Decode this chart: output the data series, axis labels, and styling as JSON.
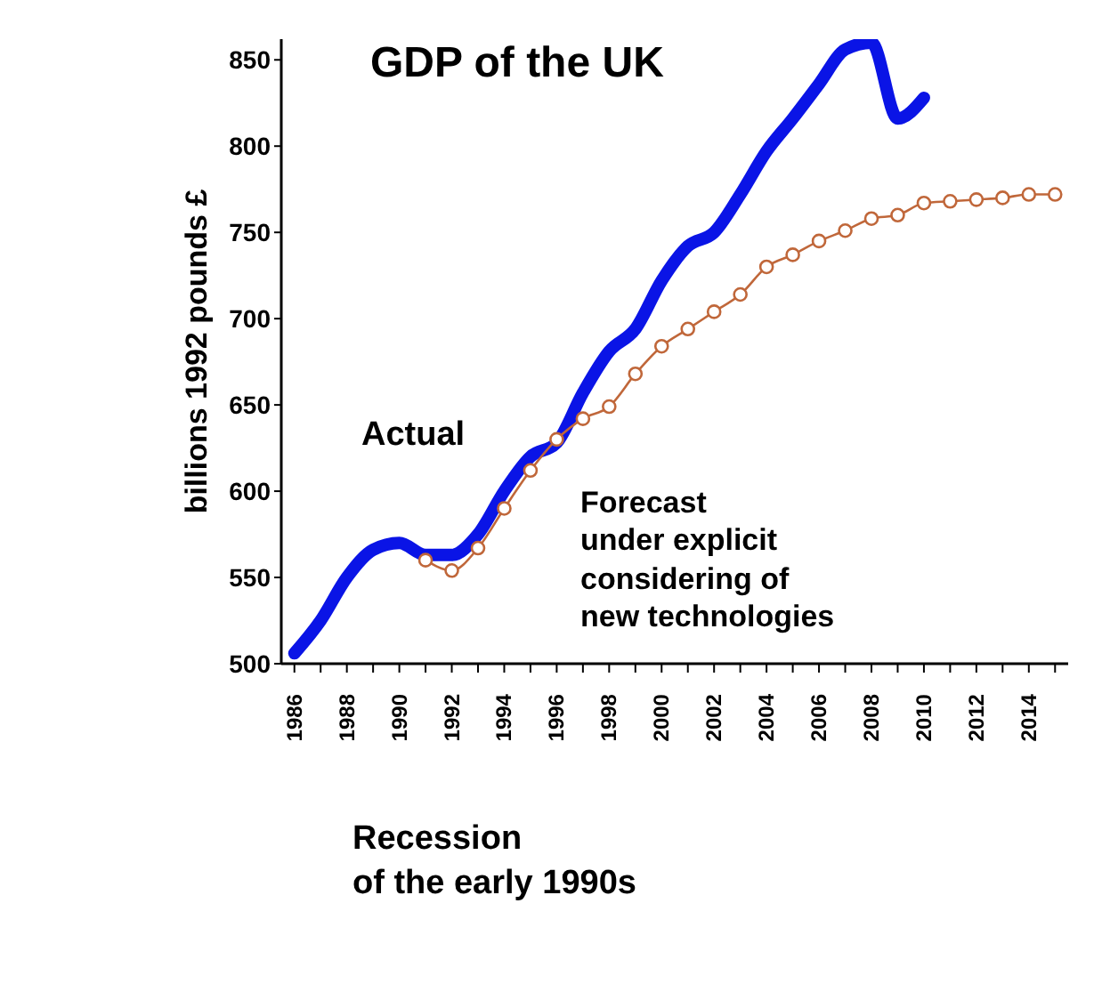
{
  "chart_data": {
    "type": "line",
    "title": "GDP of the UK",
    "ylabel": "billions 1992 pounds £",
    "xlim": [
      1985.5,
      2015.5
    ],
    "xticks": [
      1986,
      {
        "value": 1987,
        "label": null
      },
      1988,
      {
        "value": 1989,
        "label": null
      },
      1990,
      {
        "value": 1991,
        "label": null
      },
      1992,
      {
        "value": 1993,
        "label": null
      },
      1994,
      {
        "value": 1995,
        "label": null
      },
      1996,
      {
        "value": 1997,
        "label": null
      },
      1998,
      {
        "value": 1999,
        "label": null
      },
      2000,
      {
        "value": 2001,
        "label": null
      },
      2002,
      {
        "value": 2003,
        "label": null
      },
      2004,
      {
        "value": 2005,
        "label": null
      },
      2006,
      {
        "value": 2007,
        "label": null
      },
      2008,
      {
        "value": 2009,
        "label": null
      },
      2010,
      {
        "value": 2011,
        "label": null
      },
      2012,
      {
        "value": 2013,
        "label": null
      },
      2014,
      {
        "value": 2015,
        "label": null
      }
    ],
    "ylim": [
      500,
      862
    ],
    "yticks": [
      500,
      550,
      600,
      650,
      700,
      750,
      800,
      850
    ],
    "grid": false,
    "series": [
      {
        "name": "Actual",
        "color": "#0a14e6",
        "marker": "none",
        "x": [
          1986,
          1987,
          1988,
          1989,
          1990,
          1991,
          1992,
          1993,
          1994,
          1995,
          1996,
          1997,
          1998,
          1999,
          2000,
          2001,
          2002,
          2003,
          2004,
          2005,
          2006,
          2007,
          2008,
          2009,
          2010
        ],
        "values": [
          506,
          525,
          550,
          566,
          570,
          563,
          563,
          575,
          600,
          620,
          628,
          657,
          681,
          694,
          722,
          742,
          750,
          772,
          797,
          816,
          836,
          856,
          860,
          816,
          828
        ]
      },
      {
        "name": "Forecast\nunder explicit\nconsidering of\nnew technologies",
        "color": "#c0673a",
        "marker": "circle",
        "x": [
          1991,
          1992,
          1993,
          1994,
          1995,
          1996,
          1997,
          1998,
          1999,
          2000,
          2001,
          2002,
          2003,
          2004,
          2005,
          2006,
          2007,
          2008,
          2009,
          2010,
          2011,
          2012,
          2013,
          2014,
          2015
        ],
        "values": [
          560,
          554,
          567,
          590,
          612,
          630,
          642,
          649,
          668,
          684,
          694,
          704,
          714,
          730,
          737,
          745,
          751,
          758,
          760,
          767,
          768,
          769,
          770,
          772,
          772
        ]
      }
    ],
    "annotations": [
      "Recession\nof the early 1990s"
    ]
  }
}
